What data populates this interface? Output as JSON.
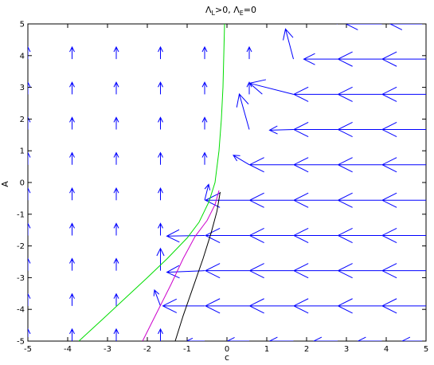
{
  "chart_data": {
    "type": "quiver",
    "title": "Λ_L>0, Λ_E=0",
    "title_main_1": "Λ",
    "title_sub_1": "L",
    "title_mid": ">0, Λ",
    "title_sub_2": "E",
    "title_end": "=0",
    "xlabel": "c",
    "ylabel": "A",
    "xlim": [
      -5,
      5
    ],
    "ylim": [
      -5,
      5
    ],
    "x_ticks": [
      -5,
      -4,
      -3,
      -2,
      -1,
      0,
      1,
      2,
      3,
      4,
      5
    ],
    "y_ticks": [
      -5,
      -4,
      -3,
      -2,
      -1,
      0,
      1,
      2,
      3,
      4,
      5
    ],
    "x_tick_labels": [
      "-5",
      "-4",
      "-3",
      "-2",
      "-1",
      "0",
      "1",
      "2",
      "3",
      "4",
      "5"
    ],
    "y_tick_labels": [
      "-5",
      "-4",
      "-3",
      "-2",
      "-1",
      "0",
      "1",
      "2",
      "3",
      "4",
      "5"
    ],
    "grid": false,
    "vector_field": {
      "color": "#0000ff",
      "x_grid": [
        -5.0,
        -3.89,
        -2.78,
        -1.67,
        -0.56,
        0.56,
        1.67,
        2.78,
        3.89,
        5.0
      ],
      "y_grid": [
        -5.0,
        -3.89,
        -2.78,
        -1.67,
        -0.56,
        0.56,
        1.67,
        2.78,
        3.89,
        5.0
      ],
      "rows": [
        [
          [
            0,
            0.38
          ],
          [
            0,
            0.38
          ],
          [
            0,
            0.38
          ],
          [
            0,
            0.38
          ],
          [
            -0.45,
            0
          ],
          [
            -0.55,
            0
          ],
          [
            -0.6,
            0
          ],
          [
            -0.6,
            0
          ],
          [
            -0.6,
            0
          ],
          [
            -0.6,
            0
          ]
        ],
        [
          [
            0,
            0.38
          ],
          [
            0,
            0.38
          ],
          [
            0,
            0.38
          ],
          [
            -0.15,
            0.5
          ],
          [
            -1.05,
            0
          ],
          [
            -1.1,
            0
          ],
          [
            -1.1,
            0
          ],
          [
            -1.1,
            0
          ],
          [
            -1.1,
            0
          ],
          [
            -1.1,
            0
          ]
        ],
        [
          [
            0,
            0.38
          ],
          [
            0,
            0.38
          ],
          [
            0,
            0.38
          ],
          [
            0,
            0.7
          ],
          [
            -0.95,
            -0.05
          ],
          [
            -1.1,
            0
          ],
          [
            -1.1,
            0
          ],
          [
            -1.1,
            0
          ],
          [
            -1.1,
            0
          ],
          [
            -1.1,
            0
          ]
        ],
        [
          [
            0,
            0.38
          ],
          [
            0,
            0.38
          ],
          [
            0,
            0.38
          ],
          [
            0,
            0.38
          ],
          [
            -0.95,
            -0.02
          ],
          [
            -1.1,
            0
          ],
          [
            -1.1,
            0
          ],
          [
            -1.1,
            0
          ],
          [
            -1.1,
            0
          ],
          [
            -1.1,
            0
          ]
        ],
        [
          [
            0,
            0.38
          ],
          [
            0,
            0.38
          ],
          [
            0,
            0.38
          ],
          [
            0,
            0.38
          ],
          [
            0.1,
            0.5
          ],
          [
            -1.1,
            0
          ],
          [
            -1.1,
            0
          ],
          [
            -1.1,
            0
          ],
          [
            -1.1,
            0
          ],
          [
            -1.1,
            0
          ]
        ],
        [
          [
            0,
            0.38
          ],
          [
            0,
            0.38
          ],
          [
            0,
            0.38
          ],
          [
            0,
            0.38
          ],
          [
            0,
            0.38
          ],
          [
            -0.4,
            0.3
          ],
          [
            -1.1,
            0
          ],
          [
            -1.1,
            0
          ],
          [
            -1.1,
            0
          ],
          [
            -1.1,
            0
          ]
        ],
        [
          [
            0,
            0.38
          ],
          [
            0,
            0.38
          ],
          [
            0,
            0.38
          ],
          [
            0,
            0.38
          ],
          [
            0,
            0.38
          ],
          [
            -0.25,
            1.12
          ],
          [
            -0.6,
            -0.02
          ],
          [
            -1.1,
            0
          ],
          [
            -1.1,
            0
          ],
          [
            -1.1,
            0
          ]
        ],
        [
          [
            0,
            0.38
          ],
          [
            0,
            0.38
          ],
          [
            0,
            0.38
          ],
          [
            0,
            0.38
          ],
          [
            0,
            0.38
          ],
          [
            0,
            0.38
          ],
          [
            -1.1,
            0.35
          ],
          [
            -1.1,
            0
          ],
          [
            -1.1,
            0
          ],
          [
            -1.1,
            0
          ]
        ],
        [
          [
            0,
            0.38
          ],
          [
            0,
            0.38
          ],
          [
            0,
            0.38
          ],
          [
            0,
            0.38
          ],
          [
            0,
            0.38
          ],
          [
            0,
            0.38
          ],
          [
            -0.2,
            0.95
          ],
          [
            -0.85,
            0
          ],
          [
            -1.1,
            0
          ],
          [
            -1.1,
            0
          ]
        ],
        [
          [
            0,
            0.38
          ],
          [
            0,
            0.38
          ],
          [
            0,
            0.38
          ],
          [
            0,
            0.38
          ],
          [
            0,
            0.38
          ],
          [
            0,
            0.38
          ],
          [
            0,
            0.38
          ],
          [
            -0.5,
            0.2
          ],
          [
            -0.9,
            0
          ],
          [
            -0.9,
            0
          ]
        ]
      ]
    },
    "curves": [
      {
        "color": "#00dd00",
        "points": [
          [
            -3.72,
            -5.0
          ],
          [
            -3.2,
            -4.4
          ],
          [
            -2.6,
            -3.7
          ],
          [
            -2.0,
            -3.0
          ],
          [
            -1.5,
            -2.4
          ],
          [
            -1.0,
            -1.75
          ],
          [
            -0.7,
            -1.25
          ],
          [
            -0.45,
            -0.6
          ],
          [
            -0.3,
            0.0
          ],
          [
            -0.2,
            1.0
          ],
          [
            -0.14,
            2.0
          ],
          [
            -0.1,
            3.0
          ],
          [
            -0.08,
            4.0
          ],
          [
            -0.06,
            5.0
          ]
        ]
      },
      {
        "color": "#cc00cc",
        "points": [
          [
            -2.12,
            -5.0
          ],
          [
            -1.8,
            -4.2
          ],
          [
            -1.4,
            -3.2
          ],
          [
            -1.1,
            -2.4
          ],
          [
            -0.8,
            -1.7
          ],
          [
            -0.5,
            -1.2
          ],
          [
            -0.3,
            -0.7
          ],
          [
            -0.2,
            -0.25
          ]
        ]
      },
      {
        "color": "#000000",
        "points": [
          [
            -1.3,
            -5.0
          ],
          [
            -1.1,
            -4.2
          ],
          [
            -0.85,
            -3.3
          ],
          [
            -0.6,
            -2.4
          ],
          [
            -0.4,
            -1.6
          ],
          [
            -0.25,
            -0.9
          ],
          [
            -0.17,
            -0.3
          ]
        ]
      }
    ]
  }
}
